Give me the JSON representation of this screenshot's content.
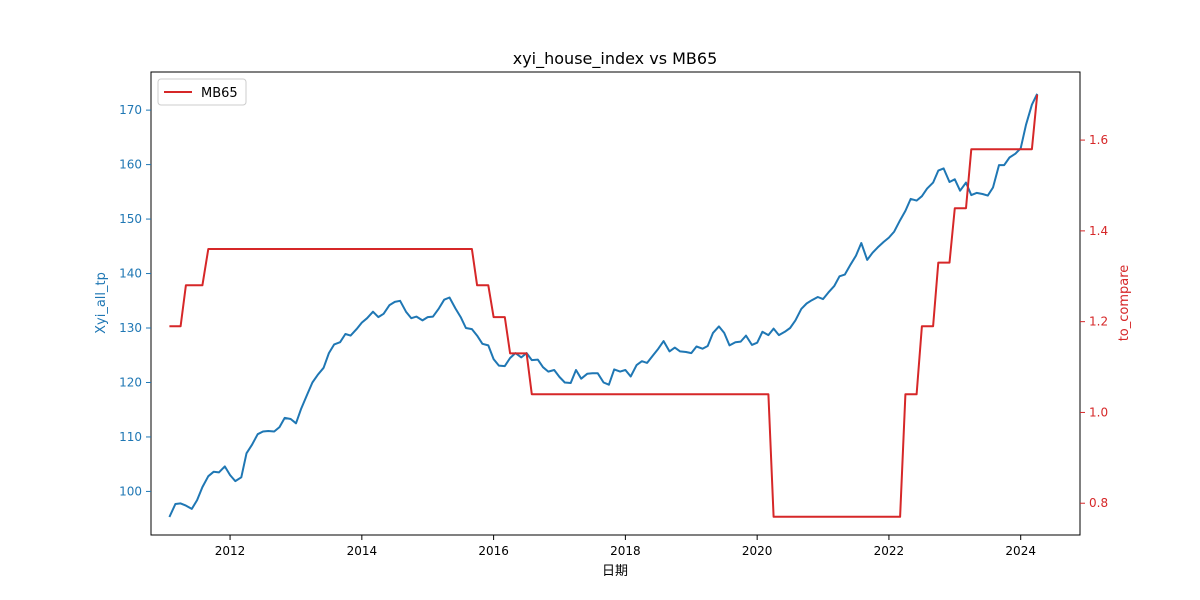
{
  "chart_data": {
    "type": "line",
    "title": "xyi_house_index vs MB65",
    "xlabel": "日期",
    "ylabel_left": "Xyi_all_tp",
    "ylabel_right": "to_compare",
    "xlim": [
      2010.8,
      2024.9
    ],
    "ylim_left": [
      92,
      177
    ],
    "ylim_right": [
      0.73,
      1.75
    ],
    "x_ticks": [
      2012,
      2014,
      2016,
      2018,
      2020,
      2022,
      2024
    ],
    "y_ticks_left": [
      100,
      110,
      120,
      130,
      140,
      150,
      160,
      170
    ],
    "y_ticks_right": [
      0.8,
      1.0,
      1.2,
      1.4,
      1.6
    ],
    "y_tick_labels_right": [
      "0.8",
      "1.0",
      "1.2",
      "1.4",
      "1.6"
    ],
    "grid": false,
    "legend_position": "top-left",
    "colors": {
      "left_series": "#1f77b4",
      "right_series": "#d62728"
    },
    "series": [
      {
        "axis": "left",
        "color": "#1f77b4",
        "x": [
          2011.08,
          2011.17,
          2011.25,
          2011.33,
          2011.42,
          2011.5,
          2011.58,
          2011.67,
          2011.75,
          2011.83,
          2011.92,
          2012.0,
          2012.08,
          2012.17,
          2012.25,
          2012.33,
          2012.42,
          2012.5,
          2012.58,
          2012.67,
          2012.75,
          2012.83,
          2012.92,
          2013.0,
          2013.08,
          2013.17,
          2013.25,
          2013.33,
          2013.42,
          2013.5,
          2013.58,
          2013.67,
          2013.75,
          2013.83,
          2013.92,
          2014.0,
          2014.08,
          2014.17,
          2014.25,
          2014.33,
          2014.42,
          2014.5,
          2014.58,
          2014.67,
          2014.75,
          2014.83,
          2014.92,
          2015.0,
          2015.08,
          2015.17,
          2015.25,
          2015.33,
          2015.42,
          2015.5,
          2015.58,
          2015.67,
          2015.75,
          2015.83,
          2015.92,
          2016.0,
          2016.08,
          2016.17,
          2016.25,
          2016.33,
          2016.42,
          2016.5,
          2016.58,
          2016.67,
          2016.75,
          2016.83,
          2016.92,
          2017.0,
          2017.08,
          2017.17,
          2017.25,
          2017.33,
          2017.42,
          2017.5,
          2017.58,
          2017.67,
          2017.75,
          2017.83,
          2017.92,
          2018.0,
          2018.08,
          2018.17,
          2018.25,
          2018.33,
          2018.42,
          2018.5,
          2018.58,
          2018.67,
          2018.75,
          2018.83,
          2018.92,
          2019.0,
          2019.08,
          2019.17,
          2019.25,
          2019.33,
          2019.42,
          2019.5,
          2019.58,
          2019.67,
          2019.75,
          2019.83,
          2019.92,
          2020.0,
          2020.08,
          2020.17,
          2020.25,
          2020.33,
          2020.42,
          2020.5,
          2020.58,
          2020.67,
          2020.75,
          2020.83,
          2020.92,
          2021.0,
          2021.08,
          2021.17,
          2021.25,
          2021.33,
          2021.42,
          2021.5,
          2021.58,
          2021.67,
          2021.75,
          2021.83,
          2021.92,
          2022.0,
          2022.08,
          2022.17,
          2022.25,
          2022.33,
          2022.42,
          2022.5,
          2022.58,
          2022.67,
          2022.75,
          2022.83,
          2022.92,
          2023.0,
          2023.08,
          2023.17,
          2023.25,
          2023.33,
          2023.42,
          2023.5,
          2023.58,
          2023.67,
          2023.75,
          2023.83,
          2023.92,
          2024.0,
          2024.08,
          2024.17,
          2024.25
        ],
        "values": [
          95.3,
          97.7,
          97.8,
          97.4,
          96.8,
          98.4,
          100.8,
          102.8,
          103.6,
          103.5,
          104.6,
          103.0,
          101.9,
          102.6,
          107.0,
          108.5,
          110.5,
          111.0,
          111.1,
          111.0,
          111.8,
          113.5,
          113.3,
          112.5,
          115.2,
          117.8,
          120.0,
          121.4,
          122.7,
          125.4,
          127.0,
          127.4,
          128.9,
          128.6,
          129.8,
          131.0,
          131.8,
          133.0,
          132.0,
          132.6,
          134.2,
          134.8,
          135.0,
          133.0,
          131.8,
          132.1,
          131.4,
          132.0,
          132.1,
          133.6,
          135.2,
          135.6,
          133.6,
          132.0,
          130.0,
          129.8,
          128.6,
          127.1,
          126.8,
          124.3,
          123.1,
          123.0,
          124.5,
          125.4,
          124.6,
          125.4,
          124.1,
          124.2,
          122.8,
          122.0,
          122.3,
          121.0,
          120.0,
          119.9,
          122.3,
          120.7,
          121.6,
          121.7,
          121.7,
          120.0,
          119.6,
          122.4,
          122.0,
          122.3,
          121.1,
          123.2,
          123.9,
          123.6,
          125.0,
          126.2,
          127.6,
          125.7,
          126.4,
          125.7,
          125.6,
          125.4,
          126.6,
          126.2,
          126.7,
          129.1,
          130.3,
          129.1,
          126.8,
          127.4,
          127.5,
          128.6,
          126.9,
          127.3,
          129.3,
          128.7,
          129.9,
          128.7,
          129.3,
          130.0,
          131.4,
          133.5,
          134.5,
          135.1,
          135.7,
          135.3,
          136.5,
          137.7,
          139.5,
          139.8,
          141.7,
          143.3,
          145.6,
          142.5,
          143.8,
          144.8,
          145.8,
          146.6,
          147.7,
          149.8,
          151.5,
          153.7,
          153.4,
          154.2,
          155.6,
          156.7,
          158.9,
          159.3,
          156.8,
          157.3,
          155.2,
          156.7,
          154.4,
          154.8,
          154.6,
          154.3,
          155.8,
          159.9,
          159.9,
          161.3,
          162.0,
          163.0,
          167.3,
          171.0,
          173.0
        ]
      },
      {
        "axis": "right",
        "name": "MB65",
        "color": "#d62728",
        "step": "post",
        "x": [
          2011.08,
          2011.25,
          2011.33,
          2011.58,
          2011.67,
          2015.67,
          2015.75,
          2015.92,
          2016.0,
          2016.17,
          2016.25,
          2016.5,
          2016.58,
          2020.17,
          2020.25,
          2022.17,
          2022.25,
          2022.42,
          2022.5,
          2022.67,
          2022.75,
          2022.92,
          2023.0,
          2023.17,
          2023.25,
          2024.17,
          2024.25
        ],
        "values": [
          1.19,
          1.19,
          1.28,
          1.28,
          1.36,
          1.36,
          1.28,
          1.28,
          1.21,
          1.21,
          1.13,
          1.13,
          1.04,
          1.04,
          0.77,
          0.77,
          1.04,
          1.04,
          1.19,
          1.19,
          1.33,
          1.33,
          1.45,
          1.45,
          1.58,
          1.58,
          1.7
        ]
      }
    ]
  }
}
